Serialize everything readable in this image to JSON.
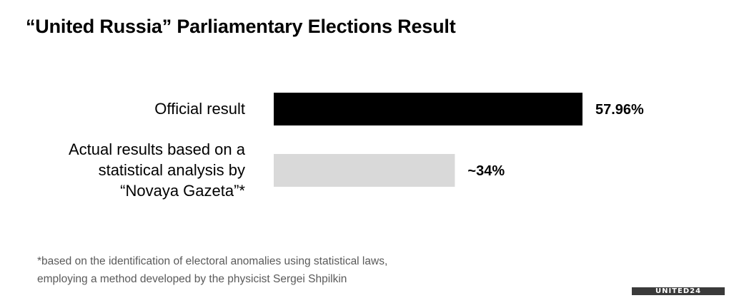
{
  "title": "“United Russia” Parliamentary Elections Result",
  "footnote": {
    "line1": "*based on the identification of electoral anomalies using statistical laws,",
    "line2": "employing a method developed by the physicist Sergei Shpilkin"
  },
  "logo_text": "UNITED24",
  "chart_data": {
    "type": "bar",
    "orientation": "horizontal",
    "categories": [
      [
        "Official result"
      ],
      [
        "Actual results based on a",
        "statistical analysis by",
        "“Novaya Gazeta”*"
      ]
    ],
    "values": [
      57.96,
      34
    ],
    "value_labels": [
      "57.96%",
      "~34%"
    ],
    "colors": [
      "#000000",
      "#d9d9d9"
    ],
    "xlim": [
      0,
      100
    ],
    "grid": false,
    "legend": "none"
  }
}
